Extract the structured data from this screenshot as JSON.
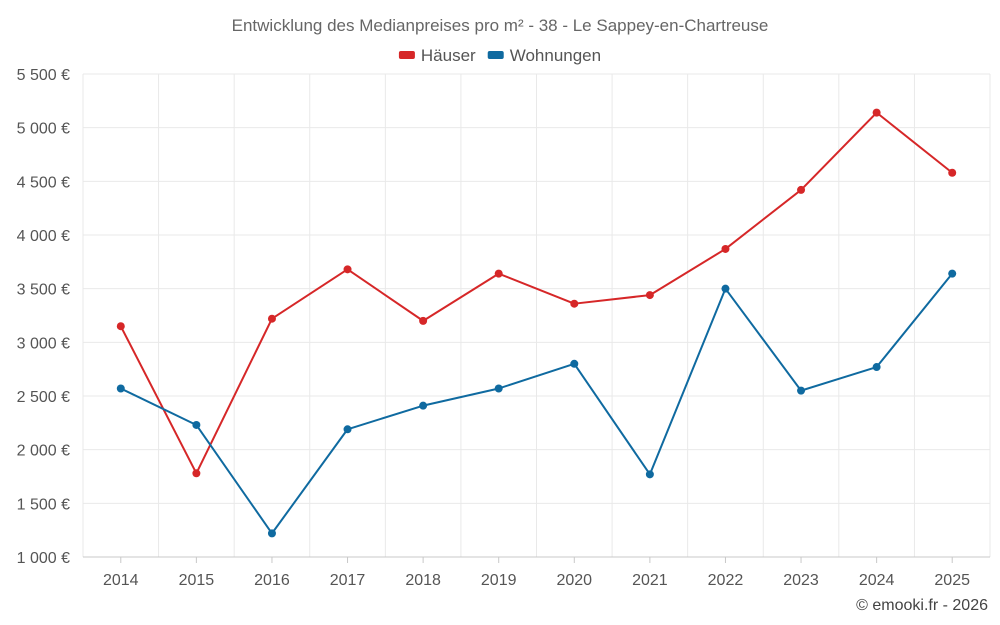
{
  "chart_data": {
    "type": "line",
    "title": "Entwicklung des Medianpreises pro m² - 38 - Le Sappey-en-Chartreuse",
    "categories": [
      "2014",
      "2015",
      "2016",
      "2017",
      "2018",
      "2019",
      "2020",
      "2021",
      "2022",
      "2023",
      "2024",
      "2025"
    ],
    "ylim": [
      1000,
      5500
    ],
    "yticks": [
      1000,
      1500,
      2000,
      2500,
      3000,
      3500,
      4000,
      4500,
      5000,
      5500
    ],
    "ytick_labels": [
      "1 000 €",
      "1 500 €",
      "2 000 €",
      "2 500 €",
      "3 000 €",
      "3 500 €",
      "4 000 €",
      "4 500 €",
      "5 000 €",
      "5 500 €"
    ],
    "xlabel": "",
    "ylabel": "",
    "legend_position": "top-center",
    "grid": true,
    "series": [
      {
        "name": "Häuser",
        "color": "#d62728",
        "values": [
          3150,
          1780,
          3220,
          3680,
          3200,
          3640,
          3360,
          3440,
          3870,
          4420,
          5140,
          4580
        ]
      },
      {
        "name": "Wohnungen",
        "color": "#0f6aa0",
        "values": [
          2570,
          2230,
          1220,
          2190,
          2410,
          2570,
          2800,
          1770,
          3500,
          2550,
          2770,
          3640
        ]
      }
    ]
  },
  "credit": "© emooki.fr - 2026"
}
